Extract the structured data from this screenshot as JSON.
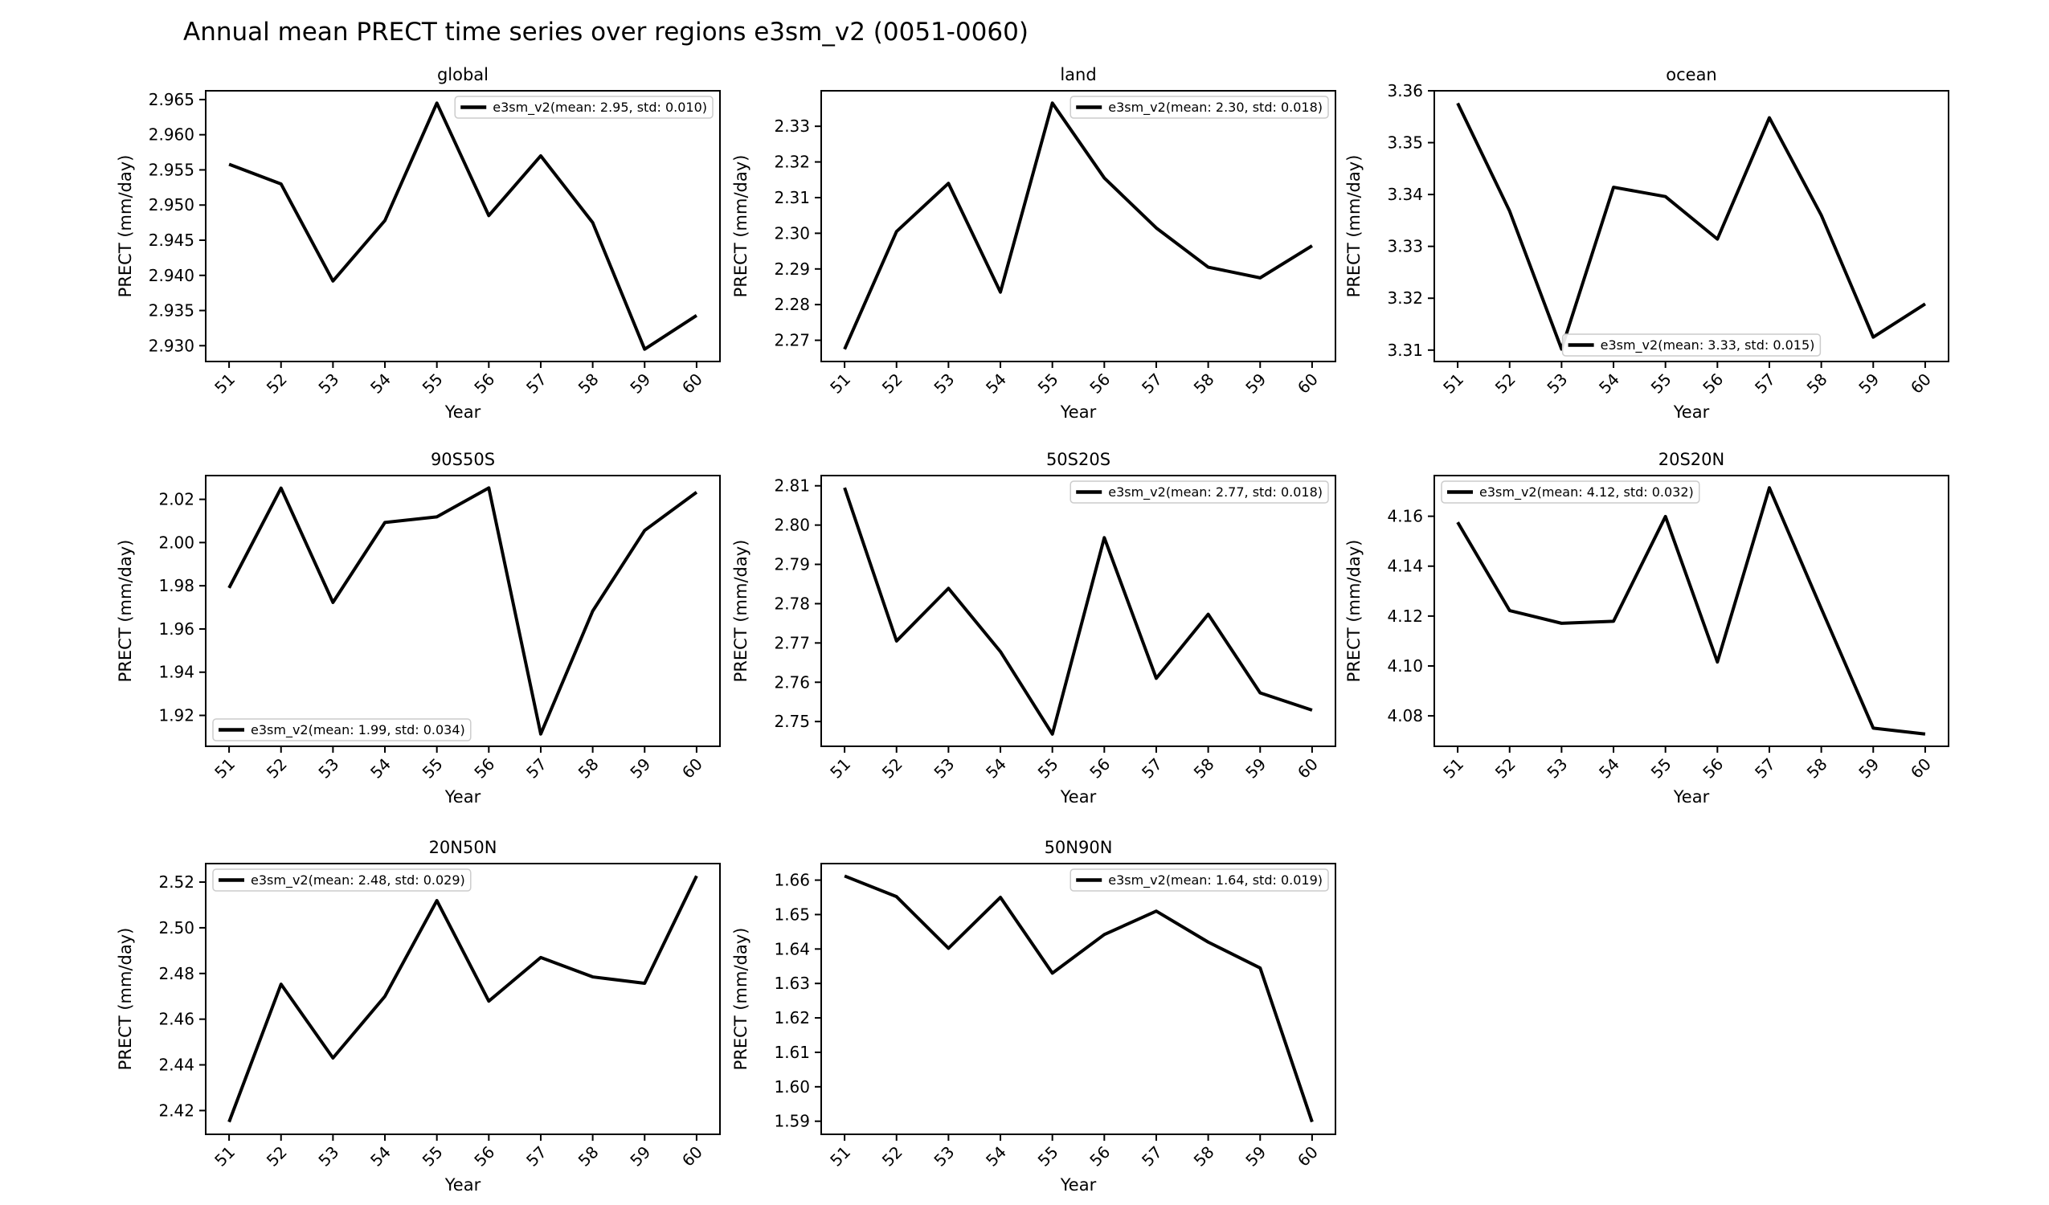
{
  "figure": {
    "suptitle": "Annual mean PRECT time series over regions e3sm_v2 (0051-0060)",
    "background_color": "#ffffff",
    "line_color": "#000000",
    "legend_border_color": "#cccccc"
  },
  "chart_data": [
    {
      "type": "line",
      "title": "global",
      "xlabel": "Year",
      "ylabel": "PRECT (mm/day)",
      "x": [
        51,
        52,
        53,
        54,
        55,
        56,
        57,
        58,
        59,
        60
      ],
      "x_tick_labels": [
        "51",
        "52",
        "53",
        "54",
        "55",
        "56",
        "57",
        "58",
        "59",
        "60"
      ],
      "values": [
        2.9558,
        2.953,
        2.9392,
        2.9478,
        2.9645,
        2.9485,
        2.957,
        2.9475,
        2.9295,
        2.9343
      ],
      "legend_label": "e3sm_v2(mean: 2.95, std: 0.010)",
      "legend_loc": "upper right",
      "xlim": [
        50.55,
        60.45
      ],
      "ylim": [
        2.92775,
        2.96625
      ],
      "yticks": [
        2.93,
        2.935,
        2.94,
        2.945,
        2.95,
        2.955,
        2.96,
        2.965
      ],
      "ytick_labels": [
        "2.930",
        "2.935",
        "2.940",
        "2.945",
        "2.950",
        "2.955",
        "2.960",
        "2.965"
      ],
      "grid": false
    },
    {
      "type": "line",
      "title": "land",
      "xlabel": "Year",
      "ylabel": "PRECT (mm/day)",
      "x": [
        51,
        52,
        53,
        54,
        55,
        56,
        57,
        58,
        59,
        60
      ],
      "x_tick_labels": [
        "51",
        "52",
        "53",
        "54",
        "55",
        "56",
        "57",
        "58",
        "59",
        "60"
      ],
      "values": [
        2.2675,
        2.3005,
        2.314,
        2.2835,
        2.3365,
        2.3155,
        2.3015,
        2.2905,
        2.2875,
        2.2965
      ],
      "legend_label": "e3sm_v2(mean: 2.30, std: 0.018)",
      "legend_loc": "upper right",
      "xlim": [
        50.55,
        60.45
      ],
      "ylim": [
        2.26405,
        2.33995
      ],
      "yticks": [
        2.27,
        2.28,
        2.29,
        2.3,
        2.31,
        2.32,
        2.33
      ],
      "ytick_labels": [
        "2.27",
        "2.28",
        "2.29",
        "2.30",
        "2.31",
        "2.32",
        "2.33"
      ],
      "grid": false
    },
    {
      "type": "line",
      "title": "ocean",
      "xlabel": "Year",
      "ylabel": "PRECT (mm/day)",
      "x": [
        51,
        52,
        53,
        54,
        55,
        56,
        57,
        58,
        59,
        60
      ],
      "x_tick_labels": [
        "51",
        "52",
        "53",
        "54",
        "55",
        "56",
        "57",
        "58",
        "59",
        "60"
      ],
      "values": [
        3.3576,
        3.3368,
        3.3102,
        3.3414,
        3.3396,
        3.3314,
        3.3548,
        3.336,
        3.3125,
        3.3189
      ],
      "legend_label": "e3sm_v2(mean: 3.33, std: 0.015)",
      "legend_loc": "lower center",
      "xlim": [
        50.55,
        60.45
      ],
      "ylim": [
        3.3078,
        3.36
      ],
      "yticks": [
        3.31,
        3.32,
        3.33,
        3.34,
        3.35,
        3.36
      ],
      "ytick_labels": [
        "3.31",
        "3.32",
        "3.33",
        "3.34",
        "3.35",
        "3.36"
      ],
      "grid": false
    },
    {
      "type": "line",
      "title": "90S50S",
      "xlabel": "Year",
      "ylabel": "PRECT (mm/day)",
      "x": [
        51,
        52,
        53,
        54,
        55,
        56,
        57,
        58,
        59,
        60
      ],
      "x_tick_labels": [
        "51",
        "52",
        "53",
        "54",
        "55",
        "56",
        "57",
        "58",
        "59",
        "60"
      ],
      "values": [
        1.979,
        2.0252,
        1.9723,
        2.0093,
        2.0119,
        2.0253,
        1.9114,
        1.9683,
        2.0056,
        2.0233
      ],
      "legend_label": "e3sm_v2(mean: 1.99, std: 0.034)",
      "legend_loc": "lower left",
      "xlim": [
        50.55,
        60.45
      ],
      "ylim": [
        1.9057,
        2.031
      ],
      "yticks": [
        1.92,
        1.94,
        1.96,
        1.98,
        2.0,
        2.02
      ],
      "ytick_labels": [
        "1.92",
        "1.94",
        "1.96",
        "1.98",
        "2.00",
        "2.02"
      ],
      "grid": false
    },
    {
      "type": "line",
      "title": "50S20S",
      "xlabel": "Year",
      "ylabel": "PRECT (mm/day)",
      "x": [
        51,
        52,
        53,
        54,
        55,
        56,
        57,
        58,
        59,
        60
      ],
      "x_tick_labels": [
        "51",
        "52",
        "53",
        "54",
        "55",
        "56",
        "57",
        "58",
        "59",
        "60"
      ],
      "values": [
        2.8095,
        2.7705,
        2.7839,
        2.7678,
        2.7468,
        2.7968,
        2.761,
        2.7773,
        2.7573,
        2.7529
      ],
      "legend_label": "e3sm_v2(mean: 2.77, std: 0.018)",
      "legend_loc": "upper right",
      "xlim": [
        50.55,
        60.45
      ],
      "ylim": [
        2.7437,
        2.8126
      ],
      "yticks": [
        2.75,
        2.76,
        2.77,
        2.78,
        2.79,
        2.8,
        2.81
      ],
      "ytick_labels": [
        "2.75",
        "2.76",
        "2.77",
        "2.78",
        "2.79",
        "2.80",
        "2.81"
      ],
      "grid": false
    },
    {
      "type": "line",
      "title": "20S20N",
      "xlabel": "Year",
      "ylabel": "PRECT (mm/day)",
      "x": [
        51,
        52,
        53,
        54,
        55,
        56,
        57,
        58,
        59,
        60
      ],
      "x_tick_labels": [
        "51",
        "52",
        "53",
        "54",
        "55",
        "56",
        "57",
        "58",
        "59",
        "60"
      ],
      "values": [
        4.1576,
        4.1222,
        4.1171,
        4.1179,
        4.1599,
        4.1016,
        4.1714,
        4.123,
        4.0751,
        4.0727
      ],
      "legend_label": "e3sm_v2(mean: 4.12, std: 0.032)",
      "legend_loc": "upper left",
      "xlim": [
        50.55,
        60.45
      ],
      "ylim": [
        4.0678,
        4.1763
      ],
      "yticks": [
        4.08,
        4.1,
        4.12,
        4.14,
        4.16
      ],
      "ytick_labels": [
        "4.08",
        "4.10",
        "4.12",
        "4.14",
        "4.16"
      ],
      "grid": false
    },
    {
      "type": "line",
      "title": "20N50N",
      "xlabel": "Year",
      "ylabel": "PRECT (mm/day)",
      "x": [
        51,
        52,
        53,
        54,
        55,
        56,
        57,
        58,
        59,
        60
      ],
      "x_tick_labels": [
        "51",
        "52",
        "53",
        "54",
        "55",
        "56",
        "57",
        "58",
        "59",
        "60"
      ],
      "values": [
        2.415,
        2.4753,
        2.443,
        2.47,
        2.5119,
        2.4679,
        2.487,
        2.4785,
        2.4757,
        2.5227
      ],
      "legend_label": "e3sm_v2(mean: 2.48, std: 0.029)",
      "legend_loc": "upper left",
      "xlim": [
        50.55,
        60.45
      ],
      "ylim": [
        2.4096,
        2.5281
      ],
      "yticks": [
        2.42,
        2.44,
        2.46,
        2.48,
        2.5,
        2.52
      ],
      "ytick_labels": [
        "2.42",
        "2.44",
        "2.46",
        "2.48",
        "2.50",
        "2.52"
      ],
      "grid": false
    },
    {
      "type": "line",
      "title": "50N90N",
      "xlabel": "Year",
      "ylabel": "PRECT (mm/day)",
      "x": [
        51,
        52,
        53,
        54,
        55,
        56,
        57,
        58,
        59,
        60
      ],
      "x_tick_labels": [
        "51",
        "52",
        "53",
        "54",
        "55",
        "56",
        "57",
        "58",
        "59",
        "60"
      ],
      "values": [
        1.6612,
        1.6552,
        1.6402,
        1.655,
        1.633,
        1.6442,
        1.651,
        1.642,
        1.6345,
        1.5898
      ],
      "legend_label": "e3sm_v2(mean: 1.64, std: 0.019)",
      "legend_loc": "upper right",
      "xlim": [
        50.55,
        60.45
      ],
      "ylim": [
        1.5862,
        1.6648
      ],
      "yticks": [
        1.59,
        1.6,
        1.61,
        1.62,
        1.63,
        1.64,
        1.65,
        1.66
      ],
      "ytick_labels": [
        "1.59",
        "1.60",
        "1.61",
        "1.62",
        "1.63",
        "1.64",
        "1.65",
        "1.66"
      ],
      "grid": false
    }
  ]
}
